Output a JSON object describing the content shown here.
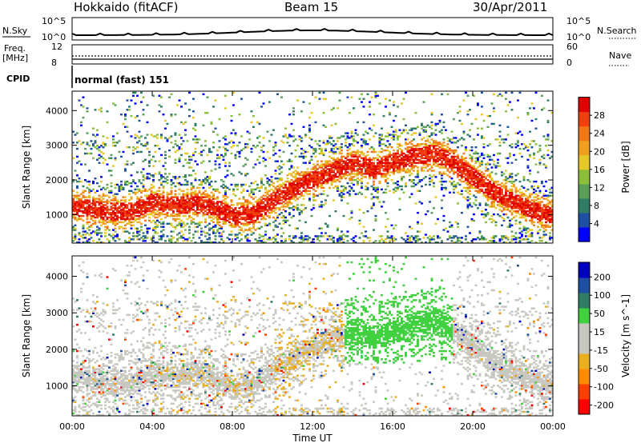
{
  "header": {
    "station": "Hokkaido (fitACF)",
    "beam": "Beam 15",
    "date": "30/Apr/2011"
  },
  "top_panels": {
    "nsky_label": "N.Sky",
    "nsearch_label": "N.Search",
    "noise_ticks": [
      "10^5",
      "10^0"
    ],
    "freq_label": "Freq.",
    "freq_unit": "[MHz]",
    "freq_ticks": [
      "12",
      "8"
    ],
    "nave_label": "Nave",
    "nave_ticks": [
      "60",
      "0"
    ],
    "cpid_label": "CPID",
    "cpid_text": "normal (fast) 151"
  },
  "colors": {
    "power_scale": [
      "#0000ff",
      "#1f4fa0",
      "#2e7d64",
      "#5a9e5a",
      "#8cc03c",
      "#e6c828",
      "#f0a020",
      "#f07818",
      "#f04010",
      "#e00000"
    ],
    "velocity_scale": [
      "#ff0000",
      "#ff4000",
      "#ff8c00",
      "#e8b020",
      "#c8c8c0",
      "#c8c8c0",
      "#40d040",
      "#2e7d64",
      "#1f4fa0",
      "#0000c0"
    ]
  },
  "chart_data": [
    {
      "type": "heatmap",
      "title": "Power",
      "ylabel": "Slant Range [km]",
      "xlabel": "Time UT",
      "x_ticks": [
        "00:00",
        "04:00",
        "08:00",
        "12:00",
        "16:00",
        "20:00",
        "00:00"
      ],
      "x_range_hours": [
        0,
        24
      ],
      "y_ticks": [
        1000,
        2000,
        3000,
        4000
      ],
      "y_range_km": [
        180,
        4560
      ],
      "colorbar_label": "Power [dB]",
      "colorbar_ticks": [
        4,
        8,
        12,
        16,
        20,
        24,
        28
      ],
      "colorbar_range": [
        0,
        32
      ],
      "echo_band_center_km": [
        [
          0,
          1200
        ],
        [
          1,
          1150
        ],
        [
          2,
          1050
        ],
        [
          3,
          1100
        ],
        [
          4,
          1350
        ],
        [
          5,
          1250
        ],
        [
          6,
          1300
        ],
        [
          7,
          1200
        ],
        [
          8,
          950
        ],
        [
          9,
          1000
        ],
        [
          10,
          1400
        ],
        [
          11,
          1750
        ],
        [
          12,
          2000
        ],
        [
          13,
          2250
        ],
        [
          14,
          2500
        ],
        [
          15,
          2300
        ],
        [
          16,
          2500
        ],
        [
          17,
          2650
        ],
        [
          18,
          2750
        ],
        [
          19,
          2500
        ],
        [
          20,
          2050
        ],
        [
          21,
          1650
        ],
        [
          22,
          1350
        ],
        [
          23,
          1100
        ],
        [
          24,
          950
        ]
      ]
    },
    {
      "type": "heatmap",
      "title": "Velocity",
      "ylabel": "Slant Range [km]",
      "xlabel": "Time UT",
      "x_ticks": [
        "00:00",
        "04:00",
        "08:00",
        "12:00",
        "16:00",
        "20:00",
        "00:00"
      ],
      "x_range_hours": [
        0,
        24
      ],
      "y_ticks": [
        1000,
        2000,
        3000,
        4000
      ],
      "y_range_km": [
        180,
        4560
      ],
      "colorbar_label": "Velocity [m s^-1]",
      "colorbar_ticks": [
        200,
        100,
        50,
        15,
        -15,
        -50,
        -100,
        -200
      ]
    }
  ]
}
